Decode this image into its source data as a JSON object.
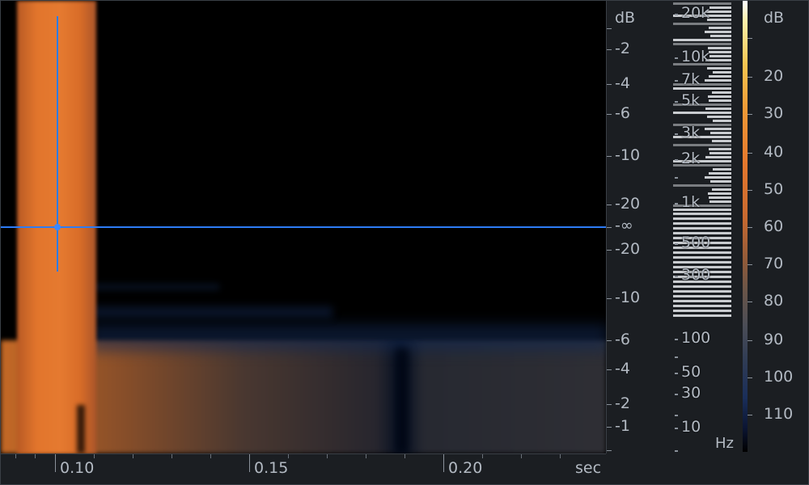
{
  "time_ruler": {
    "labels": [
      "0.10",
      "0.15",
      "0.20"
    ],
    "unit": "sec"
  },
  "db_scale": {
    "unit": "dB",
    "labels": [
      "-2",
      "-4",
      "-6",
      "-10",
      "-20",
      "-∞",
      "-20",
      "-10",
      "-6",
      "-4",
      "-2",
      "-1"
    ]
  },
  "freq_scale": {
    "labels": [
      "20k",
      "10k",
      "7k",
      "5k",
      "3k",
      "2k",
      "1k",
      "500",
      "300",
      "100",
      "50",
      "30",
      "10"
    ],
    "unit": "Hz"
  },
  "level_scale": {
    "unit": "dB",
    "labels": [
      "20",
      "30",
      "40",
      "50",
      "60",
      "70",
      "80",
      "90",
      "100",
      "110"
    ]
  },
  "colors": {
    "cursor": "#2d7cf5",
    "background": "#000000",
    "signal": "#e5782d"
  }
}
